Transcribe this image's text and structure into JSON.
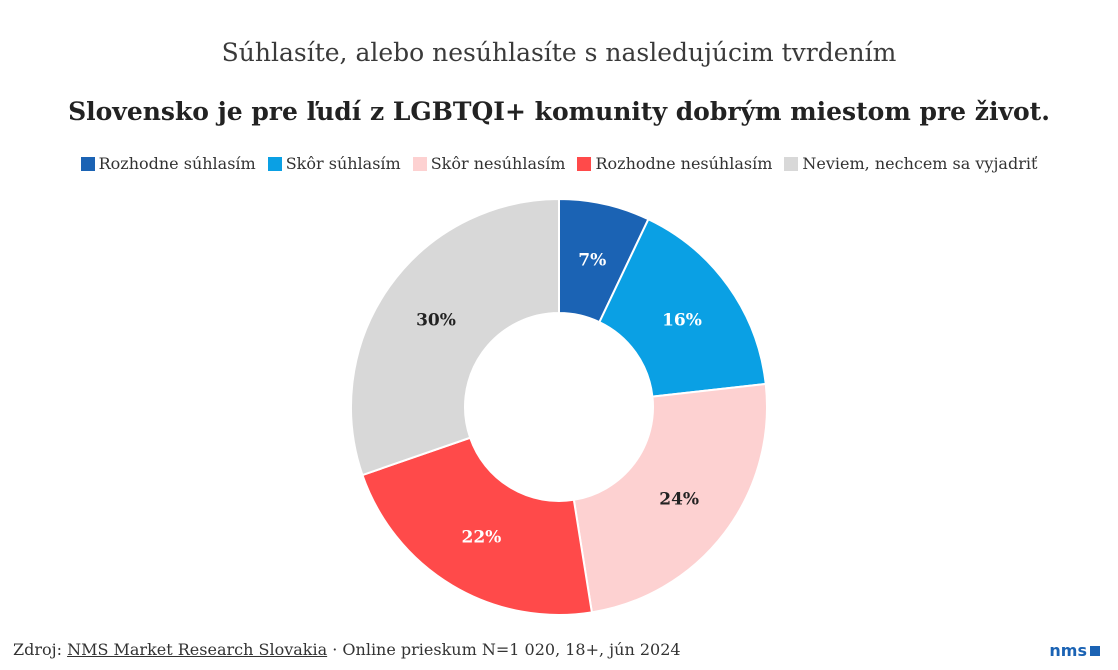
{
  "header": {
    "subtitle": "Súhlasíte, alebo nesúhlasíte s nasledujúcim tvrdením",
    "title": "Slovensko je pre ľudí z LGBTQI+ komunity dobrým miestom pre život."
  },
  "chart_data": {
    "type": "pie",
    "donut": true,
    "series": [
      {
        "name": "Rozhodne súhlasím",
        "value": 7,
        "label": "7%",
        "color": "#1b63b4",
        "label_color": "#ffffff"
      },
      {
        "name": "Skôr súhlasím",
        "value": 16,
        "label": "16%",
        "color": "#0aa0e4",
        "label_color": "#ffffff"
      },
      {
        "name": "Skôr nesúhlasím",
        "value": 24,
        "label": "24%",
        "color": "#fdd1d1",
        "label_color": "#222222"
      },
      {
        "name": "Rozhodne nesúhlasím",
        "value": 22,
        "label": "22%",
        "color": "#ff4a4a",
        "label_color": "#ffffff"
      },
      {
        "name": "Neviem, nechcem sa vyjadriť",
        "value": 30,
        "label": "30%",
        "color": "#d8d8d8",
        "label_color": "#222222"
      }
    ],
    "legend_position": "top-center"
  },
  "footer": {
    "prefix": "Zdroj: ",
    "source_link": "NMS Market Research Slovakia",
    "suffix": " · Online prieskum N=1 020, 18+, jún 2024"
  },
  "logo": {
    "text": "nms",
    "color": "#1b63b4"
  }
}
